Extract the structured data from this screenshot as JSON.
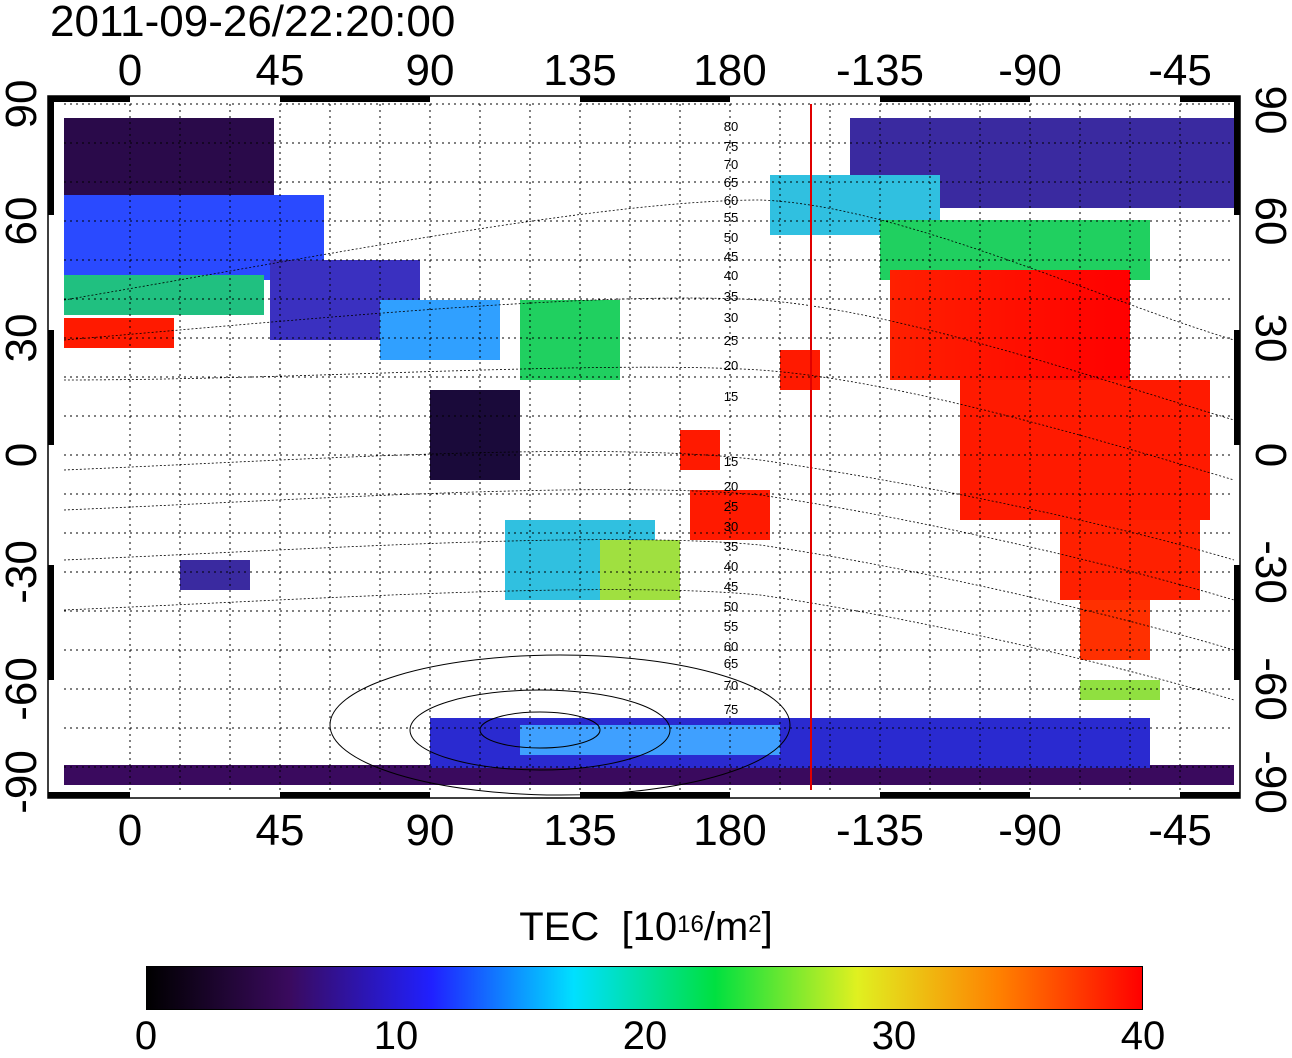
{
  "title": "2011-09-26/22:20:00",
  "map": {
    "lon_ticks": [
      "0",
      "45",
      "90",
      "135",
      "180",
      "-135",
      "-90",
      "-45"
    ],
    "lat_ticks": [
      "90",
      "60",
      "30",
      "0",
      "-30",
      "-60",
      "-90"
    ],
    "contour_labels": [
      "80",
      "75",
      "70",
      "65",
      "60",
      "55",
      "50",
      "45",
      "40",
      "35",
      "30",
      "25",
      "20",
      "15",
      "15",
      "20",
      "25",
      "30",
      "35",
      "40",
      "45",
      "50",
      "55",
      "60",
      "65",
      "70",
      "75"
    ],
    "terminator_color": "#e00000",
    "colormap": [
      "#000000",
      "#3a0a5e",
      "#2020ff",
      "#00e0ff",
      "#00e040",
      "#e0f020",
      "#ff8000",
      "#ff0000"
    ]
  },
  "colorbar": {
    "title": "TEC",
    "units_prefix": "[10",
    "units_exp": "16",
    "units_mid": "/m",
    "units_exp2": "2",
    "units_suffix": "]",
    "ticks": [
      "0",
      "10",
      "20",
      "30",
      "40"
    ],
    "range": [
      0,
      40
    ]
  }
}
